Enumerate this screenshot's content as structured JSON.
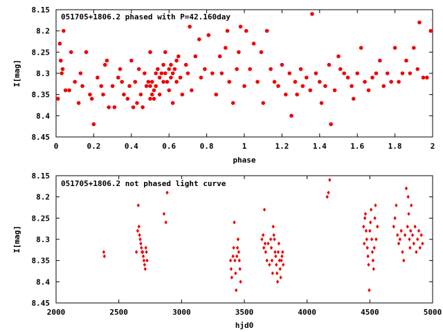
{
  "colors": {
    "points": "#ee0000",
    "axis": "#000000",
    "background": "#ffffff"
  },
  "chart_data": [
    {
      "type": "scatter",
      "title": "051705+1806.2 phased with P=42.160day",
      "xlabel": "phase",
      "ylabel": "I[mag]",
      "xlim": [
        0,
        2
      ],
      "ylim": [
        8.45,
        8.15
      ],
      "y_inverted": true,
      "xticks": [
        "0",
        "0.2",
        "0.4",
        "0.6",
        "0.8",
        "1",
        "1.2",
        "1.4",
        "1.6",
        "1.8",
        "2"
      ],
      "yticks": [
        "8.15",
        "8.2",
        "8.25",
        "8.3",
        "8.35",
        "8.4",
        "8.45"
      ],
      "grid": false,
      "marker": "filled circle",
      "series": [
        {
          "points": [
            [
              0.01,
              8.36
            ],
            [
              0.02,
              8.23
            ],
            [
              0.025,
              8.27
            ],
            [
              0.03,
              8.3
            ],
            [
              0.035,
              8.29
            ],
            [
              0.04,
              8.2
            ],
            [
              0.05,
              8.34
            ],
            [
              0.07,
              8.34
            ],
            [
              0.08,
              8.25
            ],
            [
              0.1,
              8.32
            ],
            [
              0.12,
              8.37
            ],
            [
              0.13,
              8.3
            ],
            [
              0.14,
              8.33
            ],
            [
              0.16,
              8.25
            ],
            [
              0.18,
              8.35
            ],
            [
              0.19,
              8.36
            ],
            [
              0.2,
              8.42
            ],
            [
              0.22,
              8.31
            ],
            [
              0.24,
              8.33
            ],
            [
              0.25,
              8.35
            ],
            [
              0.26,
              8.28
            ],
            [
              0.27,
              8.27
            ],
            [
              0.28,
              8.38
            ],
            [
              0.3,
              8.33
            ],
            [
              0.31,
              8.38
            ],
            [
              0.33,
              8.31
            ],
            [
              0.34,
              8.29
            ],
            [
              0.35,
              8.32
            ],
            [
              0.36,
              8.35
            ],
            [
              0.38,
              8.36
            ],
            [
              0.39,
              8.33
            ],
            [
              0.4,
              8.27
            ],
            [
              0.41,
              8.38
            ],
            [
              0.42,
              8.32
            ],
            [
              0.43,
              8.37
            ],
            [
              0.44,
              8.29
            ],
            [
              0.45,
              8.35
            ],
            [
              0.46,
              8.38
            ],
            [
              0.47,
              8.3
            ],
            [
              0.48,
              8.33
            ],
            [
              0.49,
              8.32
            ],
            [
              0.5,
              8.25
            ],
            [
              0.5,
              8.33
            ],
            [
              0.5,
              8.36
            ],
            [
              0.51,
              8.32
            ],
            [
              0.51,
              8.35
            ],
            [
              0.52,
              8.34
            ],
            [
              0.52,
              8.36
            ],
            [
              0.53,
              8.3
            ],
            [
              0.53,
              8.33
            ],
            [
              0.54,
              8.29
            ],
            [
              0.55,
              8.31
            ],
            [
              0.55,
              8.35
            ],
            [
              0.56,
              8.3
            ],
            [
              0.57,
              8.32
            ],
            [
              0.57,
              8.28
            ],
            [
              0.58,
              8.25
            ],
            [
              0.58,
              8.3
            ],
            [
              0.59,
              8.32
            ],
            [
              0.6,
              8.29
            ],
            [
              0.6,
              8.34
            ],
            [
              0.61,
              8.31
            ],
            [
              0.61,
              8.28
            ],
            [
              0.62,
              8.37
            ],
            [
              0.62,
              8.3
            ],
            [
              0.63,
              8.29
            ],
            [
              0.64,
              8.27
            ],
            [
              0.64,
              8.32
            ],
            [
              0.65,
              8.26
            ],
            [
              0.66,
              8.31
            ],
            [
              0.67,
              8.35
            ],
            [
              0.69,
              8.28
            ],
            [
              0.7,
              8.3
            ],
            [
              0.71,
              8.19
            ],
            [
              0.72,
              8.34
            ],
            [
              0.74,
              8.26
            ],
            [
              0.76,
              8.22
            ],
            [
              0.77,
              8.31
            ],
            [
              0.79,
              8.29
            ],
            [
              0.81,
              8.21
            ],
            [
              0.83,
              8.3
            ],
            [
              0.85,
              8.35
            ],
            [
              0.87,
              8.26
            ],
            [
              0.88,
              8.3
            ],
            [
              0.9,
              8.24
            ],
            [
              0.91,
              8.2
            ],
            [
              0.92,
              8.32
            ],
            [
              0.94,
              8.37
            ],
            [
              0.96,
              8.29
            ],
            [
              0.97,
              8.25
            ],
            [
              0.98,
              8.19
            ],
            [
              1.0,
              8.33
            ],
            [
              1.01,
              8.2
            ],
            [
              1.03,
              8.29
            ],
            [
              1.05,
              8.23
            ],
            [
              1.07,
              8.32
            ],
            [
              1.09,
              8.25
            ],
            [
              1.1,
              8.37
            ],
            [
              1.12,
              8.2
            ],
            [
              1.14,
              8.29
            ],
            [
              1.16,
              8.32
            ],
            [
              1.18,
              8.33
            ],
            [
              1.2,
              8.28
            ],
            [
              1.22,
              8.35
            ],
            [
              1.24,
              8.3
            ],
            [
              1.25,
              8.4
            ],
            [
              1.27,
              8.32
            ],
            [
              1.28,
              8.35
            ],
            [
              1.3,
              8.29
            ],
            [
              1.31,
              8.33
            ],
            [
              1.33,
              8.31
            ],
            [
              1.35,
              8.34
            ],
            [
              1.36,
              8.16
            ],
            [
              1.38,
              8.3
            ],
            [
              1.4,
              8.32
            ],
            [
              1.41,
              8.37
            ],
            [
              1.43,
              8.33
            ],
            [
              1.45,
              8.28
            ],
            [
              1.46,
              8.42
            ],
            [
              1.48,
              8.34
            ],
            [
              1.5,
              8.26
            ],
            [
              1.51,
              8.29
            ],
            [
              1.53,
              8.3
            ],
            [
              1.55,
              8.31
            ],
            [
              1.57,
              8.33
            ],
            [
              1.58,
              8.36
            ],
            [
              1.6,
              8.3
            ],
            [
              1.62,
              8.24
            ],
            [
              1.64,
              8.32
            ],
            [
              1.66,
              8.34
            ],
            [
              1.68,
              8.31
            ],
            [
              1.7,
              8.3
            ],
            [
              1.72,
              8.27
            ],
            [
              1.74,
              8.33
            ],
            [
              1.76,
              8.3
            ],
            [
              1.78,
              8.32
            ],
            [
              1.8,
              8.24
            ],
            [
              1.82,
              8.32
            ],
            [
              1.84,
              8.3
            ],
            [
              1.86,
              8.27
            ],
            [
              1.88,
              8.3
            ],
            [
              1.9,
              8.24
            ],
            [
              1.92,
              8.29
            ],
            [
              1.93,
              8.18
            ],
            [
              1.95,
              8.31
            ],
            [
              1.97,
              8.31
            ],
            [
              1.99,
              8.2
            ]
          ]
        }
      ]
    },
    {
      "type": "scatter",
      "title": "051705+1806.2 not phased light curve",
      "xlabel": "hjd0",
      "ylabel": "I[mag]",
      "xlim": [
        2000,
        5000
      ],
      "ylim": [
        8.45,
        8.15
      ],
      "y_inverted": true,
      "xticks": [
        "2000",
        "2500",
        "3000",
        "3500",
        "4000",
        "4500",
        "5000"
      ],
      "yticks": [
        "8.15",
        "8.2",
        "8.25",
        "8.3",
        "8.35",
        "8.4",
        "8.45"
      ],
      "grid": false,
      "marker": "small diamond",
      "series": [
        {
          "points": [
            [
              2380,
              8.33
            ],
            [
              2385,
              8.34
            ],
            [
              2640,
              8.33
            ],
            [
              2650,
              8.28
            ],
            [
              2655,
              8.22
            ],
            [
              2660,
              8.27
            ],
            [
              2665,
              8.29
            ],
            [
              2670,
              8.3
            ],
            [
              2675,
              8.31
            ],
            [
              2680,
              8.32
            ],
            [
              2685,
              8.33
            ],
            [
              2690,
              8.33
            ],
            [
              2695,
              8.34
            ],
            [
              2700,
              8.35
            ],
            [
              2705,
              8.36
            ],
            [
              2710,
              8.37
            ],
            [
              2715,
              8.32
            ],
            [
              2720,
              8.33
            ],
            [
              2725,
              8.35
            ],
            [
              2860,
              8.24
            ],
            [
              2875,
              8.26
            ],
            [
              2885,
              8.19
            ],
            [
              3390,
              8.35
            ],
            [
              3395,
              8.37
            ],
            [
              3400,
              8.39
            ],
            [
              3410,
              8.34
            ],
            [
              3415,
              8.32
            ],
            [
              3420,
              8.26
            ],
            [
              3425,
              8.35
            ],
            [
              3430,
              8.38
            ],
            [
              3435,
              8.42
            ],
            [
              3440,
              8.34
            ],
            [
              3445,
              8.32
            ],
            [
              3450,
              8.3
            ],
            [
              3455,
              8.33
            ],
            [
              3460,
              8.35
            ],
            [
              3465,
              8.37
            ],
            [
              3470,
              8.4
            ],
            [
              3640,
              8.3
            ],
            [
              3650,
              8.29
            ],
            [
              3655,
              8.32
            ],
            [
              3660,
              8.23
            ],
            [
              3665,
              8.31
            ],
            [
              3670,
              8.33
            ],
            [
              3680,
              8.35
            ],
            [
              3690,
              8.31
            ],
            [
              3700,
              8.36
            ],
            [
              3710,
              8.3
            ],
            [
              3715,
              8.32
            ],
            [
              3720,
              8.35
            ],
            [
              3725,
              8.38
            ],
            [
              3730,
              8.27
            ],
            [
              3735,
              8.29
            ],
            [
              3740,
              8.3
            ],
            [
              3745,
              8.33
            ],
            [
              3750,
              8.34
            ],
            [
              3755,
              8.36
            ],
            [
              3760,
              8.38
            ],
            [
              3765,
              8.4
            ],
            [
              3770,
              8.33
            ],
            [
              3775,
              8.31
            ],
            [
              3780,
              8.35
            ],
            [
              3785,
              8.37
            ],
            [
              3790,
              8.39
            ],
            [
              3795,
              8.35
            ],
            [
              3800,
              8.34
            ],
            [
              3805,
              8.33
            ],
            [
              3810,
              8.36
            ],
            [
              4160,
              8.2
            ],
            [
              4170,
              8.19
            ],
            [
              4180,
              8.16
            ],
            [
              4450,
              8.27
            ],
            [
              4455,
              8.31
            ],
            [
              4460,
              8.25
            ],
            [
              4465,
              8.24
            ],
            [
              4470,
              8.28
            ],
            [
              4475,
              8.3
            ],
            [
              4480,
              8.32
            ],
            [
              4485,
              8.34
            ],
            [
              4490,
              8.36
            ],
            [
              4495,
              8.42
            ],
            [
              4500,
              8.28
            ],
            [
              4505,
              8.26
            ],
            [
              4510,
              8.23
            ],
            [
              4515,
              8.3
            ],
            [
              4520,
              8.33
            ],
            [
              4525,
              8.35
            ],
            [
              4530,
              8.37
            ],
            [
              4535,
              8.32
            ],
            [
              4540,
              8.25
            ],
            [
              4545,
              8.22
            ],
            [
              4550,
              8.3
            ],
            [
              4560,
              8.27
            ],
            [
              4690,
              8.27
            ],
            [
              4700,
              8.25
            ],
            [
              4710,
              8.22
            ],
            [
              4720,
              8.29
            ],
            [
              4730,
              8.31
            ],
            [
              4740,
              8.3
            ],
            [
              4750,
              8.28
            ],
            [
              4760,
              8.33
            ],
            [
              4770,
              8.35
            ],
            [
              4780,
              8.29
            ],
            [
              4790,
              8.18
            ],
            [
              4800,
              8.27
            ],
            [
              4805,
              8.2
            ],
            [
              4810,
              8.24
            ],
            [
              4815,
              8.3
            ],
            [
              4820,
              8.32
            ],
            [
              4825,
              8.28
            ],
            [
              4830,
              8.22
            ],
            [
              4840,
              8.29
            ],
            [
              4850,
              8.31
            ],
            [
              4860,
              8.27
            ],
            [
              4870,
              8.33
            ],
            [
              4880,
              8.3
            ],
            [
              4890,
              8.28
            ],
            [
              4900,
              8.32
            ],
            [
              4910,
              8.29
            ],
            [
              4920,
              8.31
            ]
          ]
        }
      ]
    }
  ]
}
